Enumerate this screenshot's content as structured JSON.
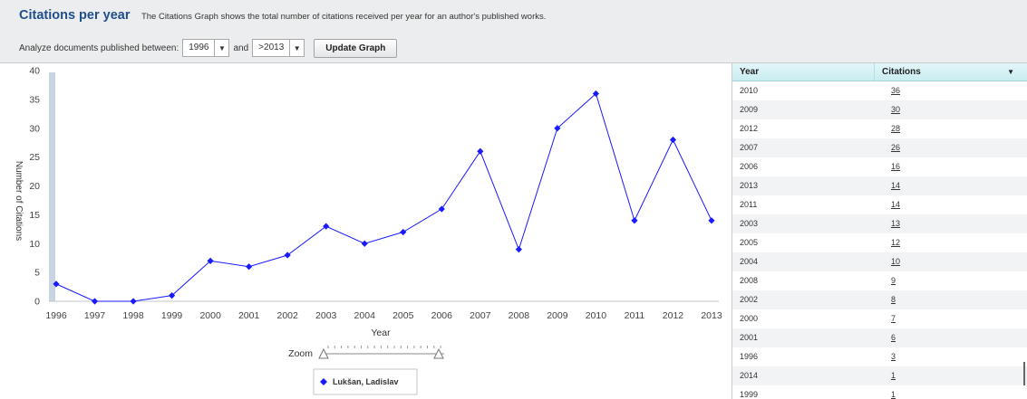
{
  "header": {
    "title": "Citations per year",
    "description": "The Citations Graph shows the total number of citations received per year for an author's published works.",
    "analyze_label": "Analyze documents published between:",
    "from_value": "1996",
    "and_label": "and",
    "to_value": ">2013",
    "update_button": "Update Graph"
  },
  "chart_data": {
    "type": "line",
    "x": [
      "1996",
      "1997",
      "1998",
      "1999",
      "2000",
      "2001",
      "2002",
      "2003",
      "2004",
      "2005",
      "2006",
      "2007",
      "2008",
      "2009",
      "2010",
      "2011",
      "2012",
      "2013"
    ],
    "series": [
      {
        "name": "Lukšan, Ladislav",
        "values": [
          3,
          0,
          0,
          1,
          7,
          6,
          8,
          13,
          10,
          12,
          16,
          26,
          9,
          30,
          36,
          14,
          28,
          14
        ],
        "color": "#1a1aff"
      }
    ],
    "xlabel": "Year",
    "ylabel": "Number of Citations",
    "ylim": [
      0,
      40
    ],
    "yticks": [
      0,
      5,
      10,
      15,
      20,
      25,
      30,
      35,
      40
    ],
    "grid": false,
    "legend": "bottom-center",
    "zoom_label": "Zoom"
  },
  "table": {
    "headers": {
      "year": "Year",
      "citations": "Citations"
    },
    "rows": [
      {
        "year": "2010",
        "citations": "36"
      },
      {
        "year": "2009",
        "citations": "30"
      },
      {
        "year": "2012",
        "citations": "28"
      },
      {
        "year": "2007",
        "citations": "26"
      },
      {
        "year": "2006",
        "citations": "16"
      },
      {
        "year": "2013",
        "citations": "14"
      },
      {
        "year": "2011",
        "citations": "14"
      },
      {
        "year": "2003",
        "citations": "13"
      },
      {
        "year": "2005",
        "citations": "12"
      },
      {
        "year": "2004",
        "citations": "10"
      },
      {
        "year": "2008",
        "citations": "9"
      },
      {
        "year": "2002",
        "citations": "8"
      },
      {
        "year": "2000",
        "citations": "7"
      },
      {
        "year": "2001",
        "citations": "6"
      },
      {
        "year": "1996",
        "citations": "3"
      },
      {
        "year": "2014",
        "citations": "1"
      },
      {
        "year": "1999",
        "citations": "1"
      }
    ]
  }
}
